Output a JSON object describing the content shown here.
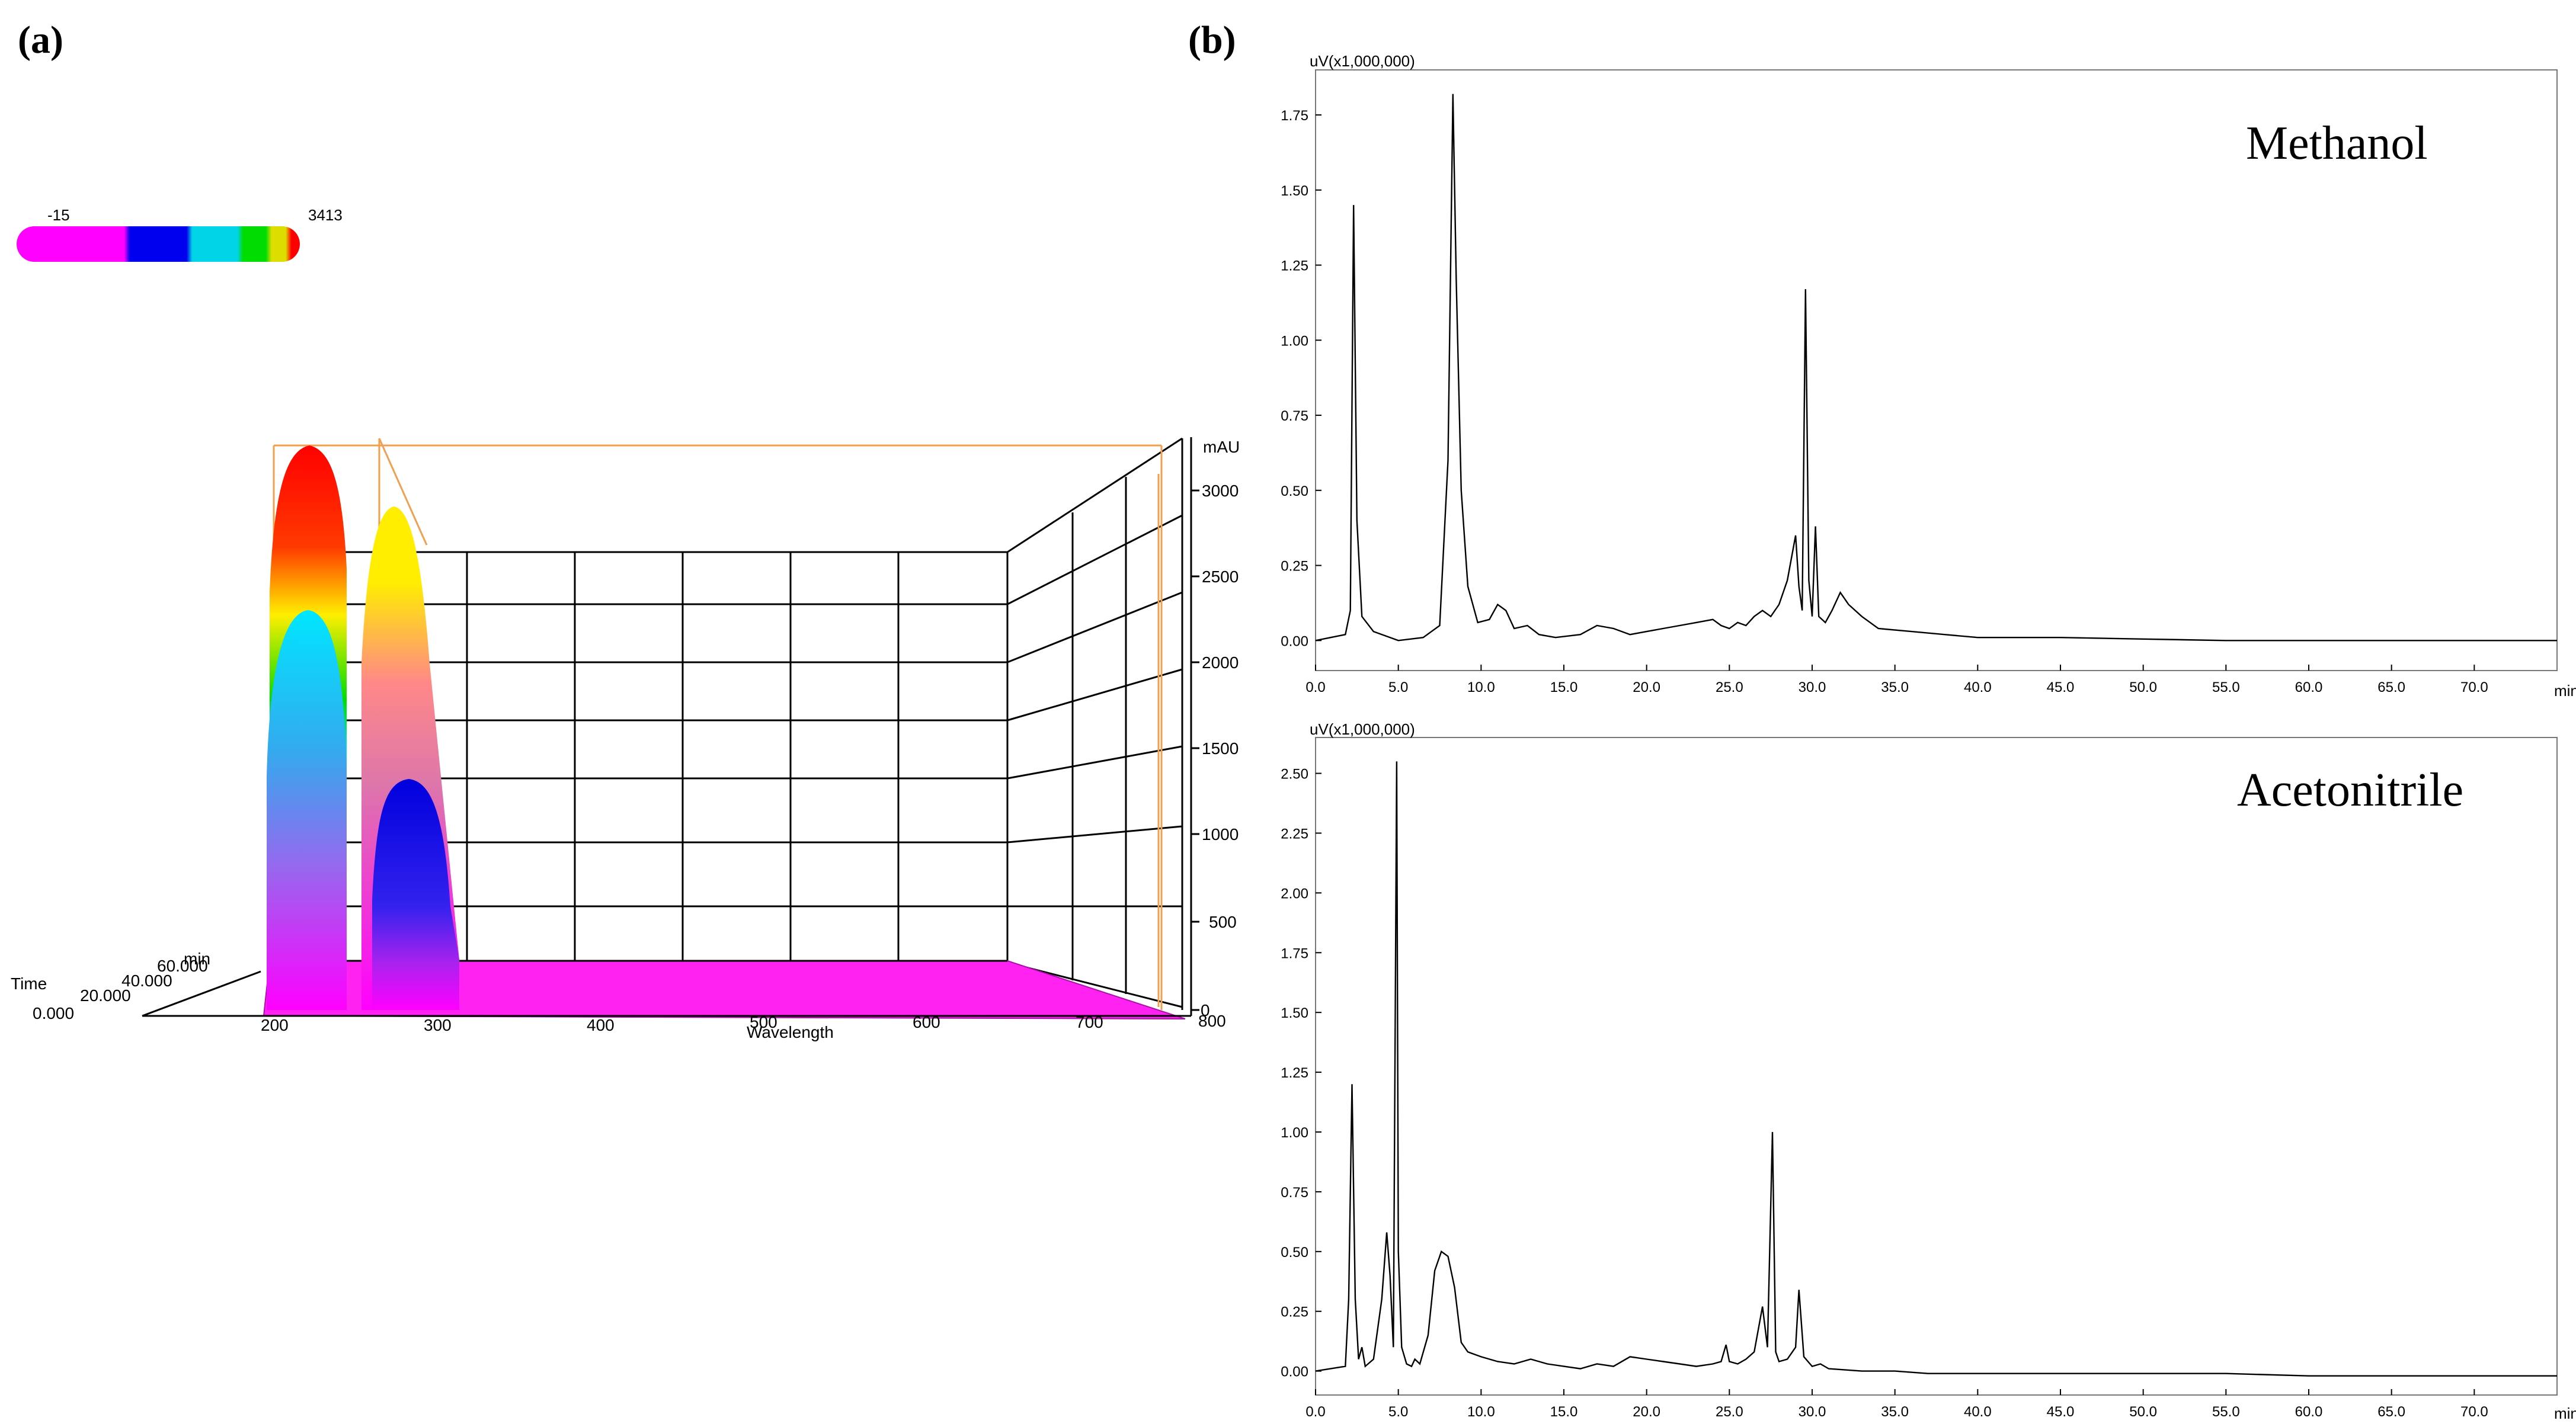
{
  "panels": {
    "a_label": "(a)",
    "b_label": "(b)"
  },
  "chart_data": [
    {
      "type": "surface3d",
      "color_scale": {
        "min_label": "-15",
        "max_label": "3413",
        "colors": [
          "#ff00ff",
          "#ff00ff",
          "#0000ee",
          "#00d4e6",
          "#00dd00",
          "#dddd00",
          "#ff0000"
        ]
      },
      "z_axis": {
        "unit": "mAU",
        "ticks": [
          "3000",
          "2500",
          "2000",
          "1500",
          "1000",
          "500",
          "0"
        ]
      },
      "x_axis": {
        "label": "Wavelength",
        "ticks": [
          "200",
          "300",
          "400",
          "500",
          "600",
          "700",
          "800"
        ]
      },
      "time_axis": {
        "label": "Time",
        "ticks": [
          "0.000",
          "20.000",
          "40.000",
          "60.000"
        ],
        "unit": "min"
      },
      "peaks": [
        {
          "wavelength": 230,
          "max_mAU": 3100,
          "inner_mAU": 2300
        },
        {
          "wavelength": 275,
          "max_mAU": 2800,
          "inner_mAU": 1250
        }
      ]
    },
    {
      "type": "line",
      "title": "Methanol",
      "ylabel": "uV(x1,000,000)",
      "xlabel": "min",
      "xlim": [
        0,
        75
      ],
      "ylim": [
        -0.1,
        1.9
      ],
      "xticks": [
        "0.0",
        "5.0",
        "10.0",
        "15.0",
        "20.0",
        "25.0",
        "30.0",
        "35.0",
        "40.0",
        "45.0",
        "50.0",
        "55.0",
        "60.0",
        "65.0",
        "70.0"
      ],
      "yticks": [
        "0.00",
        "0.25",
        "0.50",
        "0.75",
        "1.00",
        "1.25",
        "1.50",
        "1.75"
      ],
      "series": [
        {
          "x": [
            0,
            1.8,
            2.1,
            2.3,
            2.5,
            2.8,
            3.5,
            5,
            6.5,
            7.5,
            8.0,
            8.3,
            8.5,
            8.8,
            9.2,
            9.8,
            10.5,
            11.0,
            11.5,
            12.0,
            12.8,
            13.5,
            14.5,
            16,
            17,
            18,
            19,
            20,
            21,
            22,
            23,
            24,
            24.5,
            25,
            25.5,
            26,
            26.5,
            27,
            27.5,
            28,
            28.5,
            29.0,
            29.2,
            29.4,
            29.6,
            29.8,
            30.0,
            30.2,
            30.4,
            30.8,
            31.2,
            31.7,
            32.2,
            33,
            34,
            36,
            38,
            40,
            45,
            50,
            55,
            60,
            65,
            70,
            75
          ],
          "y": [
            0.0,
            0.02,
            0.1,
            1.45,
            0.4,
            0.08,
            0.03,
            0.0,
            0.01,
            0.05,
            0.6,
            1.82,
            1.2,
            0.5,
            0.18,
            0.06,
            0.07,
            0.12,
            0.1,
            0.04,
            0.05,
            0.02,
            0.01,
            0.02,
            0.05,
            0.04,
            0.02,
            0.03,
            0.04,
            0.05,
            0.06,
            0.07,
            0.05,
            0.04,
            0.06,
            0.05,
            0.08,
            0.1,
            0.08,
            0.12,
            0.2,
            0.35,
            0.18,
            0.1,
            1.17,
            0.2,
            0.08,
            0.38,
            0.08,
            0.06,
            0.1,
            0.16,
            0.12,
            0.08,
            0.04,
            0.03,
            0.02,
            0.01,
            0.01,
            0.005,
            0.0,
            0.0,
            0.0,
            0.0,
            0.0
          ]
        }
      ]
    },
    {
      "type": "line",
      "title": "Acetonitrile",
      "ylabel": "uV(x1,000,000)",
      "xlabel": "min",
      "xlim": [
        0,
        75
      ],
      "ylim": [
        -0.1,
        2.65
      ],
      "xticks": [
        "0.0",
        "5.0",
        "10.0",
        "15.0",
        "20.0",
        "25.0",
        "30.0",
        "35.0",
        "40.0",
        "45.0",
        "50.0",
        "55.0",
        "60.0",
        "65.0",
        "70.0"
      ],
      "yticks": [
        "0.00",
        "0.25",
        "0.50",
        "0.75",
        "1.00",
        "1.25",
        "1.50",
        "1.75",
        "2.00",
        "2.25",
        "2.50"
      ],
      "series": [
        {
          "x": [
            0,
            1.8,
            2.0,
            2.2,
            2.4,
            2.6,
            2.8,
            3.0,
            3.5,
            4.0,
            4.3,
            4.5,
            4.7,
            4.9,
            5.0,
            5.2,
            5.5,
            5.8,
            6.0,
            6.3,
            6.8,
            7.2,
            7.6,
            8.0,
            8.4,
            8.8,
            9.2,
            10,
            11,
            12,
            13,
            14,
            15,
            16,
            17,
            18,
            19,
            20,
            21,
            22,
            23,
            24,
            24.5,
            24.8,
            25.0,
            25.5,
            26,
            26.5,
            27.0,
            27.3,
            27.6,
            27.8,
            28.0,
            28.5,
            29.0,
            29.2,
            29.5,
            30.0,
            30.5,
            31,
            33,
            35,
            37,
            40,
            45,
            50,
            55,
            60,
            65,
            70,
            75
          ],
          "y": [
            0.0,
            0.02,
            0.3,
            1.2,
            0.3,
            0.05,
            0.1,
            0.02,
            0.05,
            0.3,
            0.58,
            0.4,
            0.1,
            2.55,
            0.5,
            0.1,
            0.03,
            0.02,
            0.05,
            0.03,
            0.15,
            0.42,
            0.5,
            0.48,
            0.35,
            0.12,
            0.08,
            0.06,
            0.04,
            0.03,
            0.05,
            0.03,
            0.02,
            0.01,
            0.03,
            0.02,
            0.06,
            0.05,
            0.04,
            0.03,
            0.02,
            0.03,
            0.04,
            0.11,
            0.04,
            0.03,
            0.05,
            0.08,
            0.27,
            0.1,
            1.0,
            0.08,
            0.04,
            0.05,
            0.1,
            0.34,
            0.06,
            0.02,
            0.03,
            0.01,
            0.0,
            0.0,
            -0.01,
            -0.01,
            -0.01,
            -0.01,
            -0.01,
            -0.02,
            -0.02,
            -0.02,
            -0.02
          ]
        }
      ]
    }
  ]
}
